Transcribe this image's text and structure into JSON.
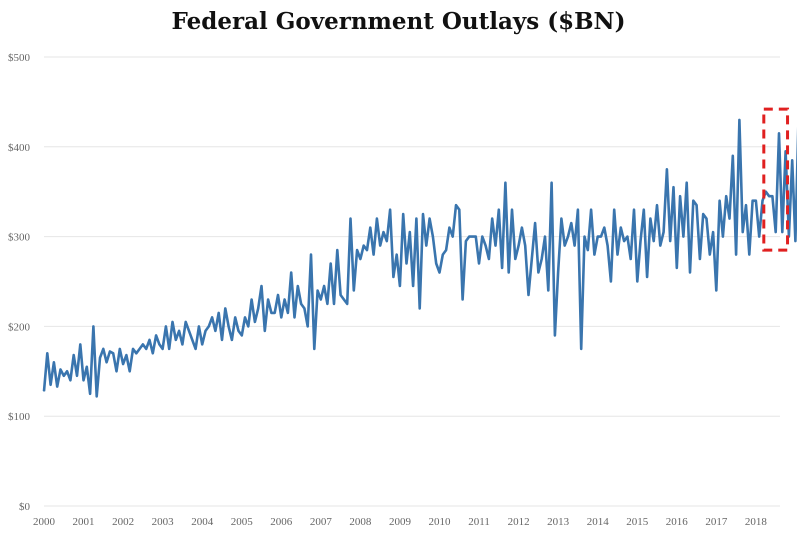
{
  "title": "Federal Government Outlays ($BN)",
  "chart_data": {
    "type": "line",
    "title": "Federal Government Outlays ($BN)",
    "xlabel": "",
    "ylabel": "",
    "ylim": [
      0,
      500
    ],
    "y_ticks": [
      0,
      100,
      200,
      300,
      400,
      500
    ],
    "y_tick_labels": [
      "$0",
      "$100",
      "$200",
      "$300",
      "$400",
      "$500"
    ],
    "x_tick_labels": [
      "2000",
      "2001",
      "2002",
      "2003",
      "2004",
      "2005",
      "2006",
      "2007",
      "2008",
      "2009",
      "2010",
      "2011",
      "2012",
      "2013",
      "2014",
      "2015",
      "2016",
      "2017",
      "2018"
    ],
    "x_start_year": 2000,
    "grid": true,
    "legend": "none",
    "color": "#3a75ae",
    "highlight": {
      "x_start": 2018.2,
      "x_end": 2018.8,
      "y_start": 285,
      "y_end": 442,
      "color": "#e02020"
    },
    "series": [
      {
        "values": [
          128,
          170,
          135,
          160,
          133,
          152,
          145,
          150,
          140,
          168,
          145,
          180,
          140,
          155,
          125,
          200,
          122,
          165,
          175,
          160,
          172,
          170,
          150,
          175,
          158,
          168,
          150,
          175,
          170,
          175,
          180,
          175,
          185,
          170,
          190,
          180,
          175,
          200,
          175,
          205,
          185,
          195,
          180,
          205,
          195,
          185,
          175,
          200,
          180,
          195,
          200,
          210,
          195,
          215,
          185,
          220,
          200,
          185,
          210,
          195,
          190,
          210,
          200,
          230,
          205,
          220,
          245,
          195,
          230,
          215,
          215,
          235,
          210,
          230,
          215,
          260,
          210,
          245,
          225,
          220,
          200,
          280,
          175,
          240,
          230,
          245,
          225,
          270,
          225,
          285,
          235,
          230,
          225,
          320,
          240,
          285,
          275,
          290,
          285,
          310,
          280,
          320,
          290,
          305,
          295,
          330,
          255,
          280,
          245,
          325,
          270,
          305,
          245,
          320,
          220,
          325,
          290,
          320,
          300,
          270,
          260,
          280,
          285,
          310,
          300,
          335,
          330,
          230,
          295,
          300,
          300,
          300,
          270,
          300,
          290,
          275,
          320,
          290,
          330,
          265,
          360,
          260,
          330,
          275,
          290,
          310,
          290,
          235,
          275,
          315,
          260,
          275,
          300,
          240,
          360,
          190,
          260,
          320,
          290,
          300,
          315,
          290,
          330,
          175,
          300,
          285,
          330,
          280,
          300,
          300,
          310,
          290,
          250,
          330,
          280,
          310,
          295,
          300,
          275,
          330,
          250,
          295,
          330,
          255,
          320,
          295,
          335,
          290,
          305,
          375,
          295,
          355,
          265,
          345,
          300,
          360,
          260,
          340,
          335,
          275,
          325,
          320,
          280,
          305,
          240,
          340,
          300,
          345,
          320,
          390,
          280,
          430,
          305,
          335,
          280,
          340,
          340,
          300,
          340,
          350,
          345,
          345,
          305,
          415,
          305,
          395,
          300,
          385,
          295,
          440
        ]
      }
    ]
  }
}
